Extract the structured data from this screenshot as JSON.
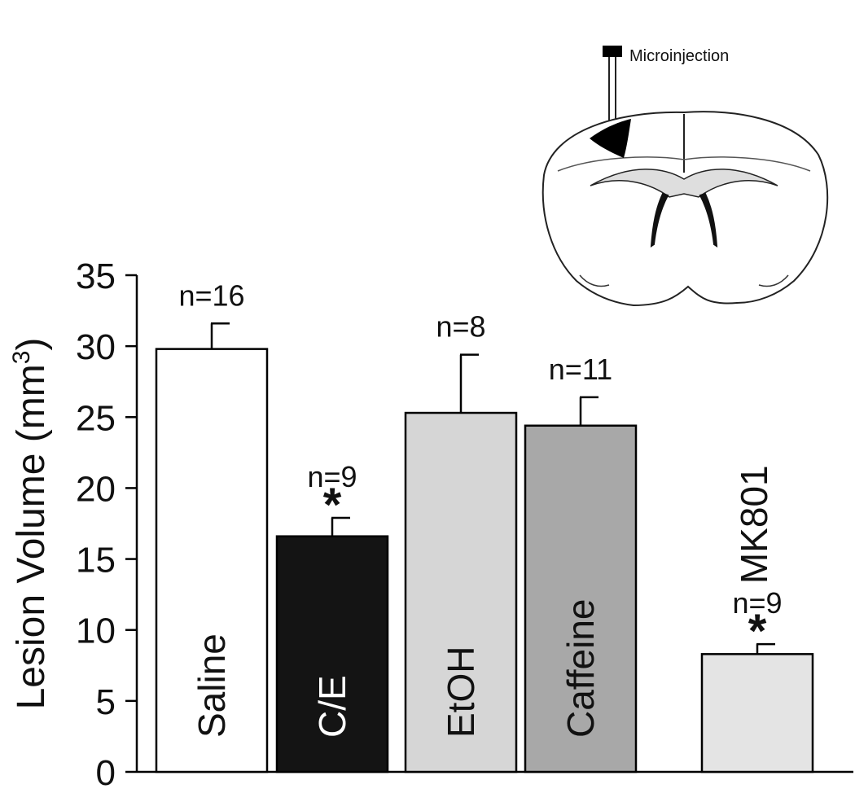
{
  "chart_data": {
    "type": "bar",
    "ylabel_main": "Lesion Volume (mm",
    "ylabel_sup": "3",
    "ylabel_close": ")",
    "ylim": [
      0,
      35
    ],
    "yticks": [
      0,
      5,
      10,
      15,
      20,
      25,
      30,
      35
    ],
    "bars": [
      {
        "label": "Saline",
        "value": 29.8,
        "error": 1.8,
        "n": "n=16",
        "star": "",
        "color": "#ffffff",
        "label_color": "#111111",
        "label_position": "inside"
      },
      {
        "label": "C/E",
        "value": 16.6,
        "error": 1.3,
        "n": "n=9",
        "star": "*",
        "color": "#141414",
        "label_color": "#ffffff",
        "label_position": "inside"
      },
      {
        "label": "EtOH",
        "value": 25.3,
        "error": 4.1,
        "n": "n=8",
        "star": "",
        "color": "#d6d6d6",
        "label_color": "#111111",
        "label_position": "inside"
      },
      {
        "label": "Caffeine",
        "value": 24.4,
        "error": 2.0,
        "n": "n=11",
        "star": "",
        "color": "#a8a8a8",
        "label_color": "#111111",
        "label_position": "inside"
      },
      {
        "label": "MK801",
        "value": 8.3,
        "error": 0.7,
        "n": "n=9",
        "star": "*",
        "color": "#e4e4e4",
        "label_color": "#111111",
        "label_position": "above"
      }
    ],
    "legend": "none",
    "grid": false
  },
  "inset": {
    "label": "Microinjection",
    "marker_color": "#000000"
  }
}
